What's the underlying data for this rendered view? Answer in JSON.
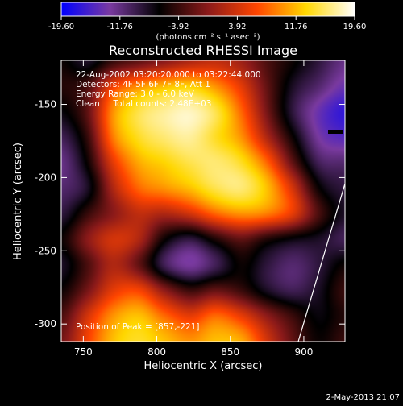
{
  "chart_data": {
    "type": "heatmap",
    "title": "Reconstructed RHESSI Image",
    "xlabel": "Heliocentric X (arcsec)",
    "ylabel": "Heliocentric Y (arcsec)",
    "xlim": [
      735,
      928
    ],
    "ylim": [
      -312,
      -120
    ],
    "x_ticks": [
      750,
      800,
      850,
      900
    ],
    "y_ticks": [
      -300,
      -250,
      -200,
      -150
    ],
    "colorbar": {
      "ticks": [
        "-19.60",
        "-11.76",
        "-3.92",
        "3.92",
        "11.76",
        "19.60"
      ],
      "tick_values": [
        -19.6,
        -11.76,
        -3.92,
        3.92,
        11.76,
        19.6
      ],
      "range": [
        -19.6,
        19.6
      ],
      "units": "(photons cm⁻² s⁻¹ asec⁻²)",
      "colors": [
        "#0000ff",
        "#7a3aa0",
        "#000000",
        "#8b1a1a",
        "#ff4500",
        "#ffd700",
        "#ffffff"
      ]
    },
    "annotations": [
      "22-Aug-2002 03:20:20.000 to 03:22:44.000",
      "Detectors: 4F 5F 6F 7F 8F, Att 1",
      "Energy Range: 3.0 - 6.0 keV",
      "Clean     Total counts: 2.48E+03"
    ],
    "peak_label": "Position of Peak = [857,-221]",
    "peak": [
      857,
      -221
    ],
    "field": {
      "xmin": 735,
      "xmax": 928,
      "ymin": -312,
      "ymax": -120,
      "nx": 12,
      "ny": 12,
      "values": [
        [
          -6,
          -8,
          -4,
          -2,
          0,
          2,
          3,
          1,
          -3,
          -6,
          -9,
          -12
        ],
        [
          -5,
          -3,
          6,
          10,
          12,
          13,
          10,
          5,
          -2,
          -8,
          -11,
          -14
        ],
        [
          -7,
          -2,
          10,
          15,
          17,
          18,
          15,
          8,
          -1,
          -9,
          -14,
          -17
        ],
        [
          -10,
          -4,
          9,
          14,
          16,
          17,
          14,
          10,
          2,
          -6,
          -13,
          -15
        ],
        [
          -12,
          -6,
          5,
          11,
          13,
          15,
          16,
          14,
          8,
          -2,
          -10,
          -11
        ],
        [
          -11,
          -8,
          2,
          8,
          10,
          12,
          15,
          16,
          12,
          4,
          -6,
          -9
        ],
        [
          -9,
          -4,
          0,
          3,
          2,
          4,
          8,
          10,
          9,
          5,
          -3,
          -8
        ],
        [
          -6,
          0,
          4,
          2,
          -6,
          -9,
          -5,
          -2,
          -5,
          -7,
          -8,
          -10
        ],
        [
          -8,
          -3,
          2,
          -2,
          -10,
          -13,
          -10,
          -6,
          -9,
          -11,
          -9,
          -6
        ],
        [
          -6,
          -1,
          5,
          6,
          0,
          -4,
          -2,
          -4,
          -8,
          -10,
          -8,
          -4
        ],
        [
          -3,
          4,
          10,
          12,
          8,
          5,
          8,
          5,
          0,
          -4,
          -7,
          -5
        ],
        [
          -1,
          6,
          12,
          14,
          12,
          10,
          12,
          11,
          4,
          -2,
          -6,
          -4
        ]
      ]
    }
  },
  "footer": {
    "date": "2-May-2013 21:07"
  }
}
